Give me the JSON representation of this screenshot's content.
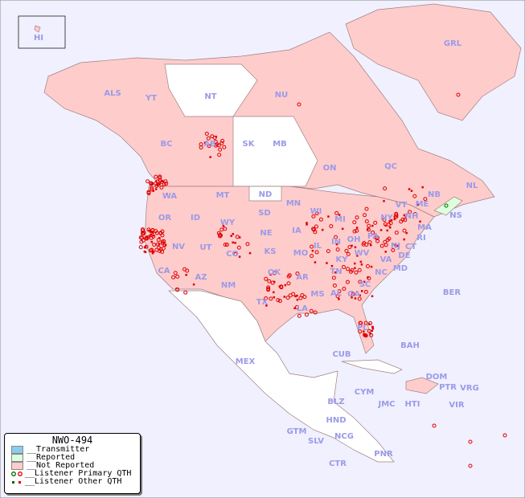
{
  "map": {
    "background": "#f0f0ff",
    "not_reported_color": "#ffcccc",
    "reported_color": "#ddffdd",
    "unlisted_color": "#ffffff",
    "dot_color": "#dd0000",
    "regions": [
      "HI",
      "ALS",
      "YT",
      "NT",
      "NU",
      "GRL",
      "BC",
      "AB",
      "SK",
      "MB",
      "ON",
      "QC",
      "NL",
      "NB",
      "NS",
      "WA",
      "MT",
      "ND",
      "MN",
      "WI",
      "OR",
      "ID",
      "WY",
      "SD",
      "IA",
      "MI",
      "NY",
      "VT",
      "ME",
      "NH",
      "MA",
      "NE",
      "IL",
      "IN",
      "OH",
      "PA",
      "CT",
      "RI",
      "NJ",
      "DE",
      "MD",
      "NV",
      "UT",
      "CO",
      "KS",
      "MO",
      "KY",
      "WV",
      "VA",
      "CA",
      "AZ",
      "NM",
      "OK",
      "AR",
      "TN",
      "NC",
      "SC",
      "MS",
      "AL",
      "GA",
      "TX",
      "LA",
      "FL",
      "BER",
      "BAH",
      "CUB",
      "MEX",
      "DOM",
      "PTR",
      "VRG",
      "CYM",
      "JMC",
      "HTI",
      "VIR",
      "BLZ",
      "HND",
      "GTM",
      "SLV",
      "NCG",
      "CTR",
      "PNR"
    ]
  },
  "legend": {
    "title": "NWO-494",
    "items": [
      {
        "label": "__Transmitter",
        "color": "#88ccee"
      },
      {
        "label": "__Reported",
        "color": "#ddffdd"
      },
      {
        "label": "__Not Reported",
        "color": "#ffcccc"
      },
      {
        "label": "__Listener Primary QTH"
      },
      {
        "label": "__Listener Other QTH"
      }
    ]
  }
}
